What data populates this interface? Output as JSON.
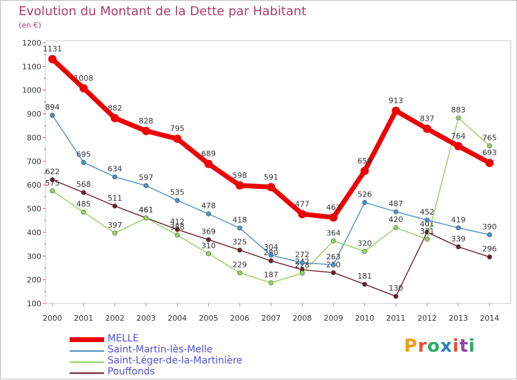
{
  "title": "Evolution du Montant de la Dette par Habitant",
  "subtitle": "(en €)",
  "logo": {
    "text": "Proxiti",
    "colors": [
      "#f39c12",
      "#e74c3c",
      "#27ae60",
      "#2980b9",
      "#e74c3c",
      "#8e44ad",
      "#27ae60"
    ]
  },
  "chart_data": {
    "type": "line",
    "title": "Evolution du Montant de la Dette par Habitant",
    "ylabel": "(en €)",
    "xlabel": "",
    "x": [
      "2000",
      "2001",
      "2002",
      "2003",
      "2004",
      "2005",
      "2006",
      "2007",
      "2008",
      "2009",
      "2010",
      "2011",
      "2012",
      "2013",
      "2014"
    ],
    "ylim": [
      100,
      1200
    ],
    "yticks": [
      100,
      200,
      300,
      400,
      500,
      600,
      700,
      800,
      900,
      1000,
      1100,
      1200
    ],
    "grid": false,
    "legend": "bottom-left",
    "series": [
      {
        "name": "MELLE",
        "color": "#ee0000",
        "values": [
          1131,
          1008,
          882,
          828,
          795,
          689,
          598,
          591,
          477,
          463,
          659,
          913,
          837,
          764,
          693
        ],
        "labels": [
          "1131",
          "1008",
          "882",
          "828",
          "795",
          "689",
          "598",
          "591",
          "477",
          "463",
          "659",
          "913",
          "837",
          "764",
          "693"
        ]
      },
      {
        "name": "Saint-Martin-lès-Melle",
        "color": "#4a90c8",
        "values": [
          894,
          695,
          634,
          597,
          535,
          478,
          418,
          304,
          272,
          263,
          526,
          487,
          452,
          419,
          390
        ],
        "labels": [
          "894",
          "695",
          "634",
          "597",
          "535",
          "478",
          "418",
          "304",
          "272",
          "263",
          "526",
          "487",
          "452",
          "419",
          "390"
        ]
      },
      {
        "name": "Saint-Léger-de-la-Martinière",
        "color": "#8fd45a",
        "values": [
          575,
          485,
          397,
          461,
          388,
          310,
          229,
          187,
          228,
          364,
          320,
          420,
          371,
          883,
          765
        ],
        "labels": [
          "575",
          "485",
          "397",
          "461",
          "388",
          "310",
          "229",
          "187",
          "228",
          "364",
          "320",
          "420",
          "371",
          "883",
          "765"
        ]
      },
      {
        "name": "Pouffonds",
        "color": "#6b1f2b",
        "values": [
          622,
          568,
          511,
          461,
          412,
          369,
          325,
          280,
          242,
          230,
          181,
          130,
          401,
          339,
          296
        ],
        "labels": [
          "622",
          "568",
          "511",
          "461",
          "412",
          "369",
          "325",
          "280",
          "242",
          "230",
          "181",
          "130",
          "401",
          "339",
          "296"
        ]
      }
    ]
  }
}
